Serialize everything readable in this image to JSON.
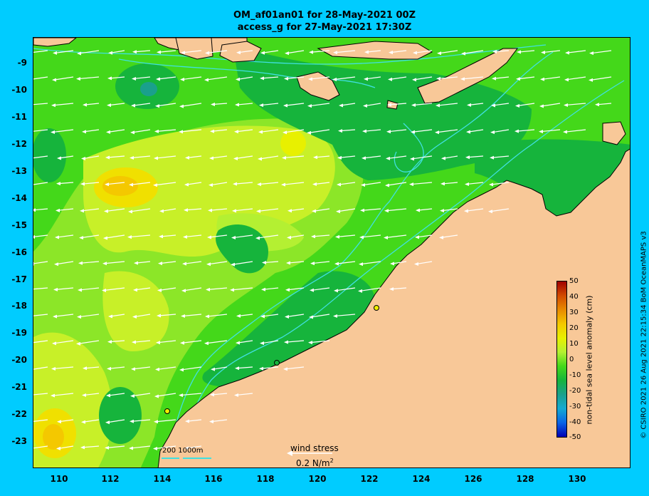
{
  "title_line1": "OM_af01an01 for 28-May-2021 00Z",
  "title_line2": "access_g for 27-May-2021 17:30Z",
  "y_ticks": [
    "-9",
    "-10",
    "-11",
    "-12",
    "-13",
    "-14",
    "-15",
    "-16",
    "-17",
    "-18",
    "-19",
    "-20",
    "-21",
    "-22",
    "-23"
  ],
  "x_ticks": [
    "110",
    "112",
    "114",
    "116",
    "118",
    "120",
    "122",
    "124",
    "126",
    "128",
    "130"
  ],
  "colorbar": {
    "label": "non-tidal sea level anomaly (cm)",
    "ticks": [
      "50",
      "40",
      "30",
      "20",
      "10",
      "0",
      "-10",
      "-20",
      "-30",
      "-40",
      "-50"
    ],
    "colors": [
      "#a00000",
      "#d24a00",
      "#e88a00",
      "#f4c800",
      "#e8f000",
      "#b4f032",
      "#44d81a",
      "#16b43c",
      "#1aa08c",
      "#14aad2",
      "#0a64e6",
      "#0000b4"
    ]
  },
  "colors": {
    "background": "#00ccff",
    "land": "#f8c898",
    "bathymetry_contour": "#40e0e0",
    "wind_arrow": "#ffffff"
  },
  "scale_bar": {
    "text": "200  1000m"
  },
  "wind_legend": {
    "label": "wind stress",
    "value": "0.2 N/m",
    "unit_superscript": "2"
  },
  "credit": "© CSIRO 2021  26 Aug 2021 22:15:34 BoM OceanMAPS v3"
}
